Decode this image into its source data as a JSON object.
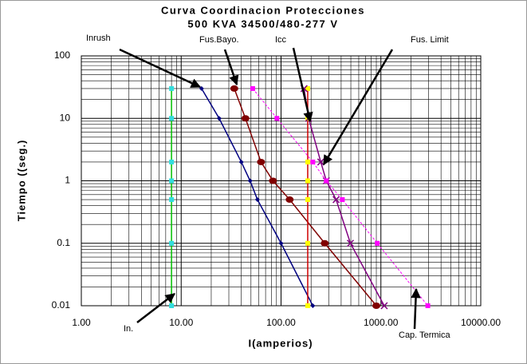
{
  "chart_data": {
    "type": "loglog-line",
    "title": "Curva Coordinacion Protecciones",
    "subtitle": "500 KVA 34500/480-277 V",
    "x_label": "I(amperios)",
    "y_label": "Tiempo ((seg.)",
    "xlim": [
      1,
      10000
    ],
    "ylim": [
      0.01,
      100
    ],
    "xticks": [
      {
        "value": 1,
        "label": "1.00"
      },
      {
        "value": 10,
        "label": "10.00"
      },
      {
        "value": 100,
        "label": "100.00"
      },
      {
        "value": 1000,
        "label": "1000.00"
      },
      {
        "value": 10000,
        "label": "10000.00"
      }
    ],
    "yticks": [
      100,
      10,
      1,
      0.1,
      0.01
    ],
    "x_scale": "log",
    "y_scale": "log",
    "grid": true,
    "series": [
      {
        "name": "In.",
        "color": "#00c000",
        "marker_color": "#33dddd",
        "marker": "square",
        "x": [
          8,
          8,
          8,
          8,
          8,
          8,
          8
        ],
        "values": [
          30,
          10,
          2,
          1,
          0.5,
          0.1,
          0.01
        ]
      },
      {
        "name": "Inrush",
        "color": "#000080",
        "marker_color": "#000080",
        "marker": "diamond",
        "x": [
          16,
          24,
          40,
          49,
          58,
          100,
          208
        ],
        "values": [
          30,
          10,
          2,
          1,
          0.5,
          0.1,
          0.01
        ]
      },
      {
        "name": "Fus.Bayo.",
        "color": "#800000",
        "marker_color": "#800000",
        "marker": "circle",
        "x": [
          34,
          44,
          63,
          83,
          122,
          274,
          900
        ],
        "values": [
          30,
          10,
          2,
          1,
          0.5,
          0.1,
          0.01
        ]
      },
      {
        "name": "Icc",
        "color": "#d00000",
        "marker_color": "#ffff00",
        "marker": "square",
        "x": [
          185,
          185,
          185,
          185,
          185,
          185,
          185
        ],
        "values": [
          30,
          10,
          2,
          1,
          0.5,
          0.1,
          0.01
        ]
      },
      {
        "name": "Fus. Limit",
        "color": "#800080",
        "marker_color": "#800080",
        "marker": "x",
        "x": [
          170,
          189,
          250,
          284,
          356,
          495,
          1080
        ],
        "values": [
          30,
          10,
          2,
          1,
          0.5,
          0.1,
          0.01
        ]
      },
      {
        "name": "Cap. Termica",
        "color": "#ff00ff",
        "marker_color": "#ff00ff",
        "marker": "square",
        "x": [
          52,
          91,
          208,
          284,
          411,
          920,
          2950
        ],
        "values": [
          30,
          10,
          2,
          1,
          0.5,
          0.1,
          0.01
        ]
      }
    ]
  }
}
